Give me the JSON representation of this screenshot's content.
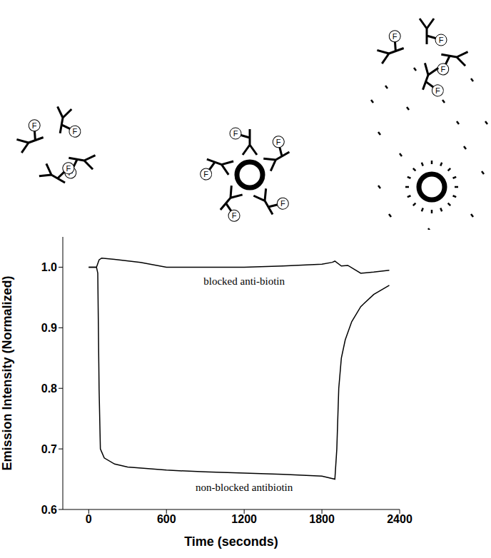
{
  "chart_data": {
    "type": "line",
    "xlabel": "Time (seconds)",
    "ylabel": "Emission Intensity (Normalized)",
    "xlim": [
      -200,
      2400
    ],
    "xticks": [
      0,
      600,
      1200,
      1800,
      2400
    ],
    "ylim": [
      0.6,
      1.05
    ],
    "yticks": [
      0.6,
      0.7,
      0.8,
      0.9,
      {
        "value": 1,
        "label": "1.0"
      }
    ],
    "grid": false,
    "annotations": [
      "F"
    ],
    "series": [
      {
        "name": "blocked anti-biotin",
        "color": "#000000",
        "x": [
          0,
          60,
          80,
          100,
          200,
          400,
          600,
          900,
          1200,
          1500,
          1800,
          1880,
          1900,
          1950,
          2000,
          2100,
          2200,
          2320
        ],
        "values": [
          1.0,
          1.0,
          1.012,
          1.015,
          1.013,
          1.008,
          1.0,
          1.0,
          1.0,
          1.002,
          1.005,
          1.008,
          1.01,
          1.002,
          1.003,
          0.99,
          0.992,
          0.995
        ]
      },
      {
        "name": "non-blocked antibiotin",
        "color": "#000000",
        "x": [
          0,
          60,
          70,
          80,
          90,
          100,
          120,
          200,
          300,
          600,
          900,
          1200,
          1500,
          1800,
          1900,
          1915,
          1930,
          1950,
          1980,
          2030,
          2100,
          2200,
          2320
        ],
        "values": [
          1.0,
          1.0,
          0.99,
          0.8,
          0.7,
          0.695,
          0.685,
          0.675,
          0.67,
          0.665,
          0.662,
          0.66,
          0.658,
          0.655,
          0.65,
          0.7,
          0.8,
          0.85,
          0.88,
          0.91,
          0.935,
          0.955,
          0.97
        ]
      }
    ]
  }
}
